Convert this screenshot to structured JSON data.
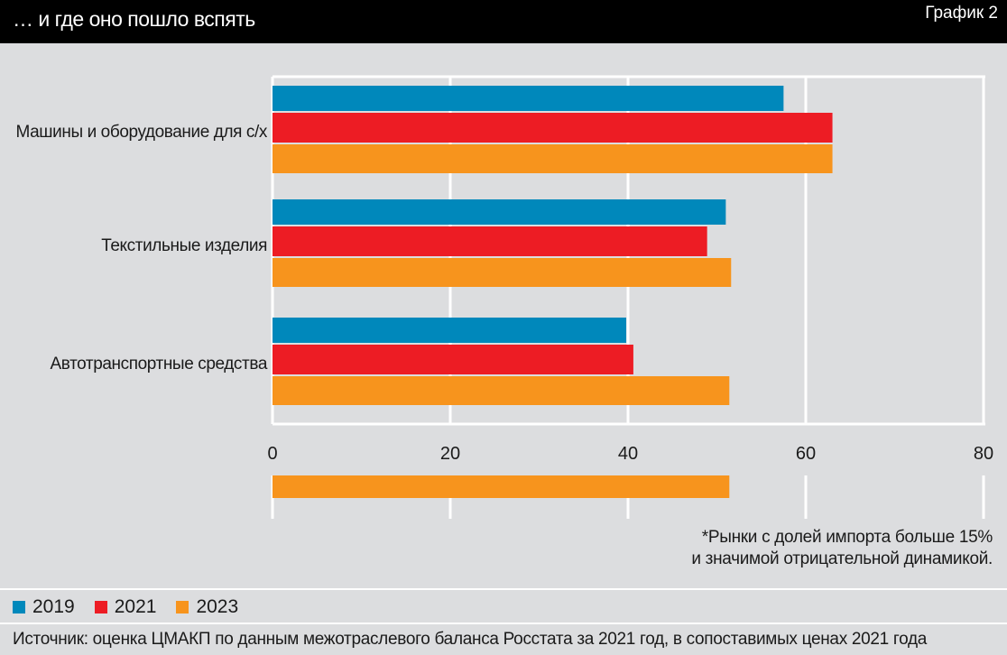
{
  "header": {
    "title": "… и где оно пошло вспять",
    "badge": "График 2"
  },
  "chart_data": {
    "type": "bar",
    "orientation": "horizontal",
    "categories": [
      "Машины и оборудование для с/х",
      "Текстильные изделия",
      "Автотранспортные средства"
    ],
    "series": [
      {
        "name": "2019",
        "color": "#0088bb",
        "values": [
          57.5,
          51.0,
          39.8
        ]
      },
      {
        "name": "2021",
        "color": "#ed1c24",
        "values": [
          63.0,
          48.9,
          40.6
        ]
      },
      {
        "name": "2023",
        "color": "#f7941d",
        "values": [
          63.0,
          51.6,
          51.4
        ]
      }
    ],
    "xlim": [
      0,
      80
    ],
    "xticks": [
      0,
      20,
      40,
      60,
      80
    ],
    "grid": true,
    "legend_placement": "bottom-left"
  },
  "note": {
    "line1": "*Рынки с долей импорта больше 15%",
    "line2": "и значимой отрицательной динамикой."
  },
  "source": "Источник: оценка ЦМАКП по данным межотраслевого баланса Росстата за 2021 год, в сопоставимых ценах 2021 года"
}
